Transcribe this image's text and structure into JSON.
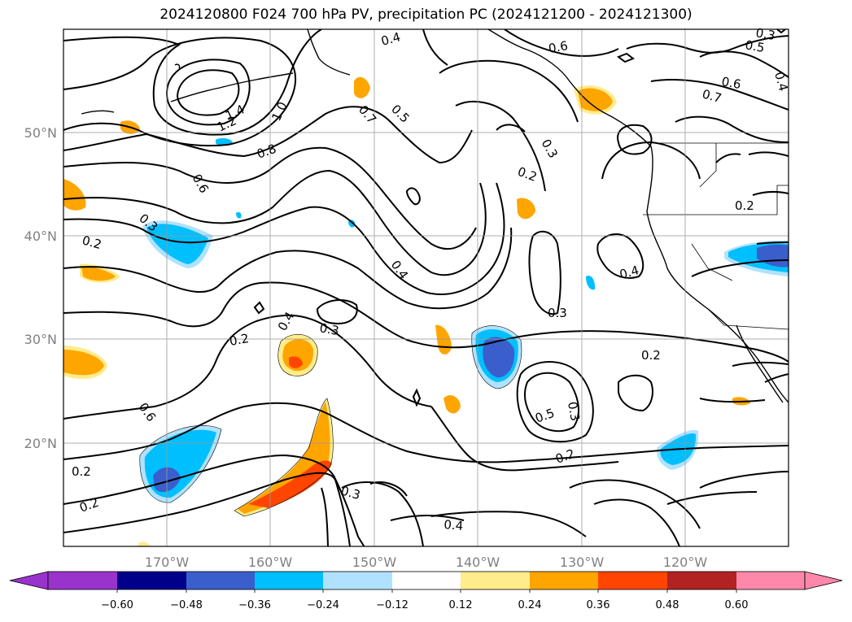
{
  "title": "2024120800 F024 700 hPa PV, precipitation PC (2024121200 - 2024121300)",
  "lat_labels": [
    "50°N",
    "40°N",
    "30°N",
    "20°N"
  ],
  "lon_labels": [
    "170°W",
    "160°W",
    "150°W",
    "140°W",
    "130°W",
    "120°W"
  ],
  "contour_labels": [
    "1.4",
    "1.2",
    "1.0",
    "0.8",
    "0.6",
    "0.3",
    "0.2",
    "0.4",
    "0.7",
    "0.5",
    "0.4",
    "0.3",
    "0.2",
    "0.6",
    "0.5",
    "0.6",
    "0.7",
    "0.4",
    "0.3",
    "0.2",
    "0.4",
    "0.3",
    "0.2",
    "0.3",
    "0.4",
    "0.2",
    "0.6",
    "0.5",
    "0.3",
    "0.2",
    "0.2",
    "0.3",
    "0.4",
    "0.2"
  ],
  "colorbar": {
    "ticks": [
      "−0.60",
      "−0.48",
      "−0.36",
      "−0.24",
      "−0.12",
      "0.12",
      "0.24",
      "0.36",
      "0.48",
      "0.60"
    ],
    "colors": [
      "#9933cc",
      "#00008b",
      "#3a5fcd",
      "#00bfff",
      "#b0e2ff",
      "#ffffff",
      "#ffec8b",
      "#ffa500",
      "#ff4500",
      "#b22222",
      "#ff88aa"
    ]
  }
}
